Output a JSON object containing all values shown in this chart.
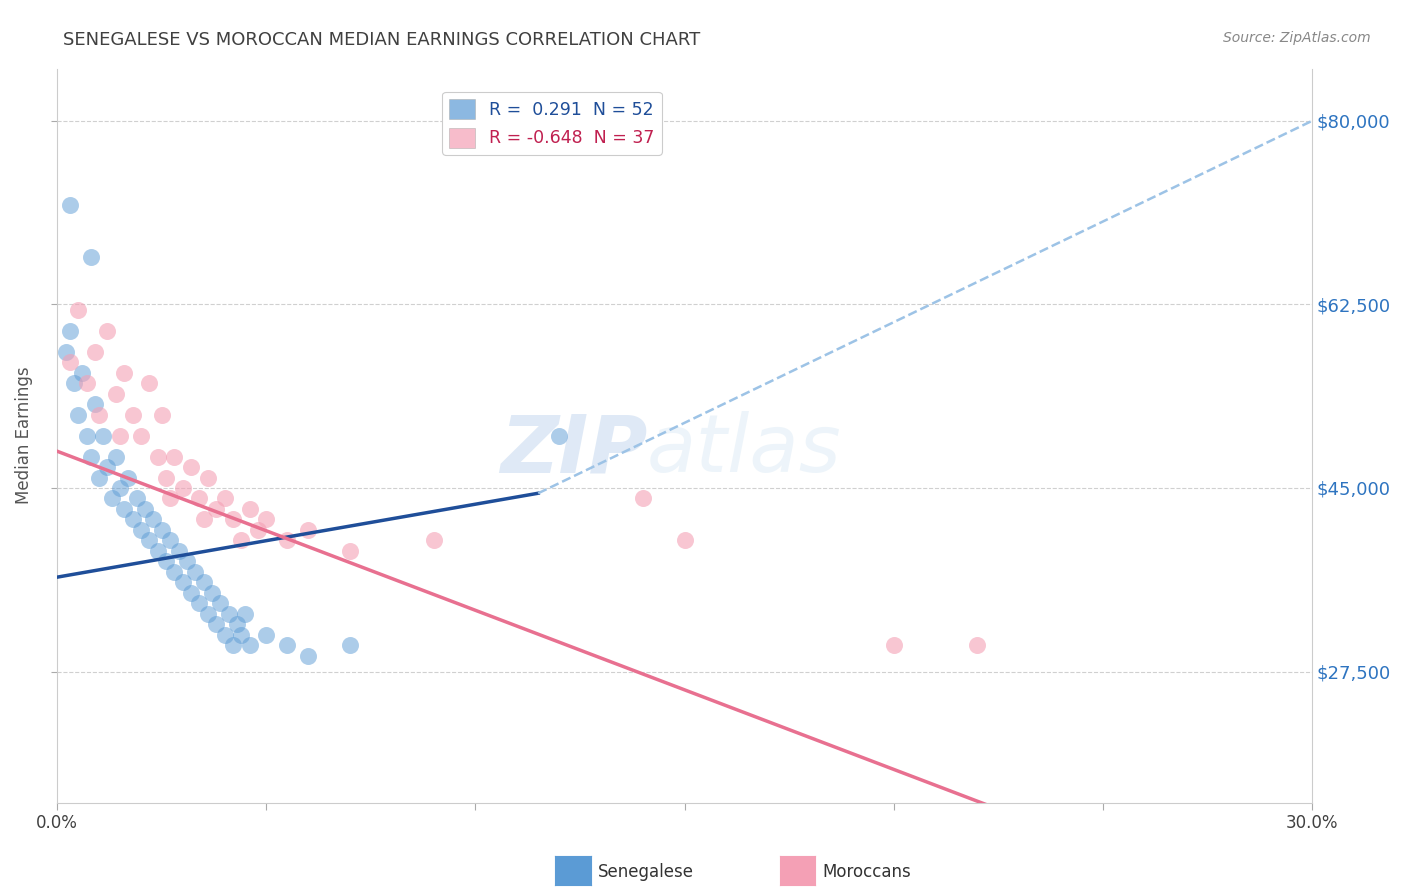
{
  "title": "SENEGALESE VS MOROCCAN MEDIAN EARNINGS CORRELATION CHART",
  "source_text": "Source: ZipAtlas.com",
  "ylabel": "Median Earnings",
  "xlim": [
    0.0,
    0.3
  ],
  "ylim": [
    15000,
    85000
  ],
  "yticks": [
    27500,
    45000,
    62500,
    80000
  ],
  "ytick_labels": [
    "$27,500",
    "$45,000",
    "$62,500",
    "$80,000"
  ],
  "xticks": [
    0.0,
    0.05,
    0.1,
    0.15,
    0.2,
    0.25,
    0.3
  ],
  "xtick_labels": [
    "0.0%",
    "",
    "",
    "",
    "",
    "",
    "30.0%"
  ],
  "watermark_zip": "ZIP",
  "watermark_atlas": "atlas",
  "blue_scatter": [
    [
      0.002,
      58000
    ],
    [
      0.003,
      60000
    ],
    [
      0.004,
      55000
    ],
    [
      0.005,
      52000
    ],
    [
      0.006,
      56000
    ],
    [
      0.007,
      50000
    ],
    [
      0.008,
      48000
    ],
    [
      0.009,
      53000
    ],
    [
      0.01,
      46000
    ],
    [
      0.011,
      50000
    ],
    [
      0.012,
      47000
    ],
    [
      0.013,
      44000
    ],
    [
      0.014,
      48000
    ],
    [
      0.015,
      45000
    ],
    [
      0.016,
      43000
    ],
    [
      0.017,
      46000
    ],
    [
      0.018,
      42000
    ],
    [
      0.019,
      44000
    ],
    [
      0.02,
      41000
    ],
    [
      0.021,
      43000
    ],
    [
      0.022,
      40000
    ],
    [
      0.023,
      42000
    ],
    [
      0.024,
      39000
    ],
    [
      0.025,
      41000
    ],
    [
      0.026,
      38000
    ],
    [
      0.027,
      40000
    ],
    [
      0.028,
      37000
    ],
    [
      0.029,
      39000
    ],
    [
      0.03,
      36000
    ],
    [
      0.031,
      38000
    ],
    [
      0.032,
      35000
    ],
    [
      0.033,
      37000
    ],
    [
      0.034,
      34000
    ],
    [
      0.035,
      36000
    ],
    [
      0.036,
      33000
    ],
    [
      0.037,
      35000
    ],
    [
      0.038,
      32000
    ],
    [
      0.039,
      34000
    ],
    [
      0.04,
      31000
    ],
    [
      0.041,
      33000
    ],
    [
      0.042,
      30000
    ],
    [
      0.043,
      32000
    ],
    [
      0.044,
      31000
    ],
    [
      0.045,
      33000
    ],
    [
      0.046,
      30000
    ],
    [
      0.05,
      31000
    ],
    [
      0.055,
      30000
    ],
    [
      0.06,
      29000
    ],
    [
      0.07,
      30000
    ],
    [
      0.003,
      72000
    ],
    [
      0.008,
      67000
    ],
    [
      0.12,
      50000
    ]
  ],
  "pink_scatter": [
    [
      0.003,
      57000
    ],
    [
      0.005,
      62000
    ],
    [
      0.007,
      55000
    ],
    [
      0.009,
      58000
    ],
    [
      0.01,
      52000
    ],
    [
      0.012,
      60000
    ],
    [
      0.014,
      54000
    ],
    [
      0.015,
      50000
    ],
    [
      0.016,
      56000
    ],
    [
      0.018,
      52000
    ],
    [
      0.02,
      50000
    ],
    [
      0.022,
      55000
    ],
    [
      0.024,
      48000
    ],
    [
      0.025,
      52000
    ],
    [
      0.026,
      46000
    ],
    [
      0.027,
      44000
    ],
    [
      0.028,
      48000
    ],
    [
      0.03,
      45000
    ],
    [
      0.032,
      47000
    ],
    [
      0.034,
      44000
    ],
    [
      0.035,
      42000
    ],
    [
      0.036,
      46000
    ],
    [
      0.038,
      43000
    ],
    [
      0.04,
      44000
    ],
    [
      0.042,
      42000
    ],
    [
      0.044,
      40000
    ],
    [
      0.046,
      43000
    ],
    [
      0.048,
      41000
    ],
    [
      0.05,
      42000
    ],
    [
      0.055,
      40000
    ],
    [
      0.06,
      41000
    ],
    [
      0.07,
      39000
    ],
    [
      0.09,
      40000
    ],
    [
      0.14,
      44000
    ],
    [
      0.15,
      40000
    ],
    [
      0.2,
      30000
    ],
    [
      0.22,
      30000
    ]
  ],
  "blue_line_solid": [
    [
      0.0,
      36500
    ],
    [
      0.115,
      44500
    ]
  ],
  "blue_line_dashed": [
    [
      0.115,
      44500
    ],
    [
      0.3,
      80000
    ]
  ],
  "pink_line": [
    [
      0.0,
      48500
    ],
    [
      0.3,
      3000
    ]
  ],
  "blue_color": "#5b9bd5",
  "pink_color": "#f4a0b5",
  "blue_line_color": "#1f4e99",
  "blue_dash_color": "#9dc3e6",
  "pink_line_color": "#e87090",
  "grid_color": "#d0d0d0",
  "title_color": "#404040",
  "ytick_color": "#2e74c0",
  "source_color": "#888888",
  "background_color": "#ffffff"
}
